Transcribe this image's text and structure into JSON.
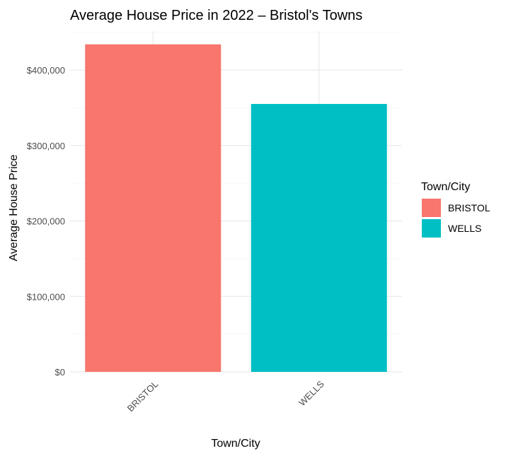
{
  "chart_data": {
    "type": "bar",
    "title": "Average House Price in 2022 – Bristol's Towns",
    "xlabel": "Town/City",
    "ylabel": "Average House Price",
    "categories": [
      "BRISTOL",
      "WELLS"
    ],
    "values": [
      434000,
      355000
    ],
    "colors": [
      "#F8766D",
      "#00BFC4"
    ],
    "ylim": [
      0,
      455000
    ],
    "yticks": [
      0,
      100000,
      200000,
      300000,
      400000
    ],
    "ytick_labels": [
      "$0",
      "$100,000",
      "$200,000",
      "$300,000",
      "$400,000"
    ],
    "grid": true,
    "legend": {
      "title": "Town/City",
      "position": "right",
      "entries": [
        "BRISTOL",
        "WELLS"
      ]
    }
  }
}
